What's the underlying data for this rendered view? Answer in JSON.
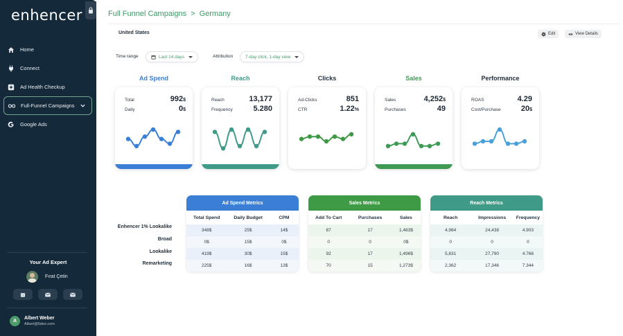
{
  "app": {
    "logo": "enhencer"
  },
  "sidebar": {
    "items": [
      {
        "label": "Home",
        "icon": "home-icon"
      },
      {
        "label": "Connect",
        "icon": "plug-icon"
      },
      {
        "label": "Ad Health Checkup",
        "icon": "plus-square-icon"
      },
      {
        "label": "Full-Funnel Campaigns",
        "icon": "infinity-icon"
      },
      {
        "label": "Google Ads",
        "icon": "google-icon"
      }
    ],
    "expert_title": "Your Ad Expert",
    "expert_name": "Fırat Çetin",
    "user_initial": "A",
    "user_name": "Albert Weber",
    "user_email": "Albert@5dex.com"
  },
  "header": {
    "breadcrumb_root": "Full Funnel Campaigns",
    "breadcrumb_sep": ">",
    "breadcrumb_current": "Germany",
    "country": "United States",
    "edit_label": "Edit",
    "view_label": "View Details"
  },
  "filters": {
    "time_label": "Time range",
    "time_value": "Last 14 days",
    "attr_label": "Attribution",
    "attr_value": "7-day click, 1-day view"
  },
  "cards": [
    {
      "title": "Ad Spend",
      "color": "#3a7fd5",
      "l1": "Total",
      "v1": "992",
      "u1": "$",
      "l2": "Daily",
      "v2": "0",
      "u2": "$",
      "series": [
        6,
        3,
        7,
        10,
        6,
        4,
        9
      ],
      "bar": "#3a7fd5"
    },
    {
      "title": "Reach",
      "color": "#3f9a88",
      "l1": "Reach",
      "v1": "13,177",
      "u1": "",
      "l2": "Frequency",
      "v2": "5.280",
      "u2": "",
      "series": [
        9,
        2,
        10,
        3,
        10,
        3,
        9
      ],
      "bar": "#3f9a88"
    },
    {
      "title": "Clicks",
      "color": "#1f2d3a",
      "l1": "Ad-Clicks",
      "v1": "851",
      "u1": "",
      "l2": "CTR",
      "v2": "1.22",
      "u2": "%",
      "series": [
        6,
        7,
        7,
        5,
        7,
        6,
        8
      ],
      "bar": null
    },
    {
      "title": "Sales",
      "color": "#3f9a56",
      "l1": "Sales",
      "v1": "4,252",
      "u1": "$",
      "l2": "Purchases",
      "v2": "49",
      "u2": "",
      "series": [
        3,
        4,
        4,
        8,
        3,
        3,
        4
      ],
      "bar": "#3f9a56"
    },
    {
      "title": "Performance",
      "color": "#1f2d3a",
      "l1": "ROAS",
      "v1": "4.29",
      "u1": "",
      "l2": "Cost/Purchase",
      "v2": "20",
      "u2": "$",
      "series": [
        4,
        5,
        5,
        10,
        4,
        4,
        5
      ],
      "bar": null
    }
  ],
  "metrics": {
    "row_labels": [
      "Enhencer 1% Lookalike",
      "Broad",
      "Lookalike",
      "Remarketing"
    ],
    "tables": [
      {
        "title": "Ad Spend Metrics",
        "head_color": "#3a7fd5",
        "body_color": "#e9f0fa",
        "columns": [
          "Total Spend",
          "Daily Budget",
          "CPM"
        ],
        "rows": [
          [
            "348$",
            "25$",
            "14$"
          ],
          [
            "0$",
            "15$",
            "0$"
          ],
          [
            "419$",
            "30$",
            "15$"
          ],
          [
            "225$",
            "16$",
            "13$"
          ]
        ]
      },
      {
        "title": "Sales Metrics",
        "head_color": "#3f9a45",
        "body_color": "#ebf5ec",
        "columns": [
          "Add To Cart",
          "Purchases",
          "Sales"
        ],
        "rows": [
          [
            "87",
            "17",
            "1,483$"
          ],
          [
            "0",
            "0",
            "0$"
          ],
          [
            "92",
            "17",
            "1,496$"
          ],
          [
            "70",
            "15",
            "1,273$"
          ]
        ]
      },
      {
        "title": "Reach Metrics",
        "head_color": "#3f9a88",
        "body_color": "#eaf4f2",
        "columns": [
          "Reach",
          "Impressions",
          "Frequency"
        ],
        "rows": [
          [
            "4,984",
            "24,438",
            "4.903"
          ],
          [
            "0",
            "0",
            "0"
          ],
          [
            "5,831",
            "27,790",
            "4.766"
          ],
          [
            "2,362",
            "17,346",
            "7.344"
          ]
        ]
      }
    ]
  }
}
